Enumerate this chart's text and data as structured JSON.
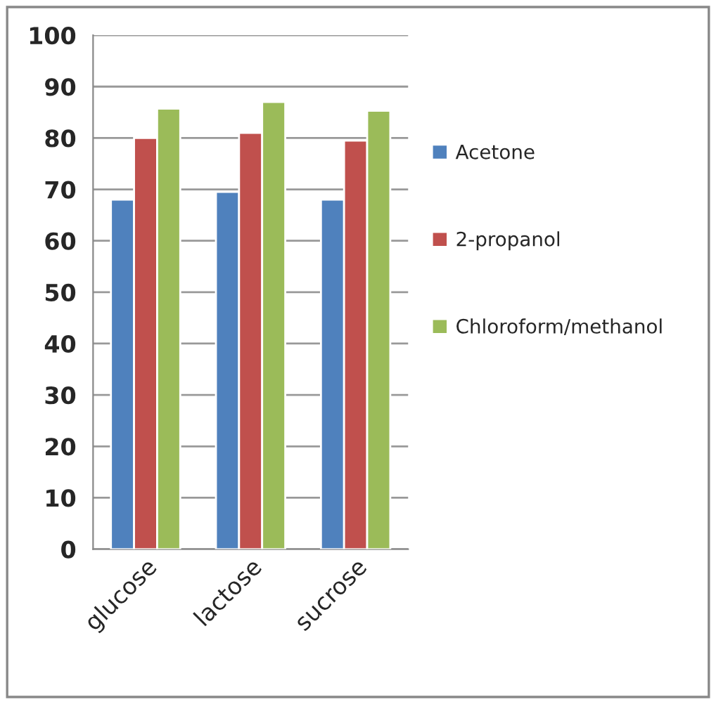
{
  "chart_data": {
    "type": "bar",
    "categories": [
      "glucose",
      "lactose",
      "sucrose"
    ],
    "series": [
      {
        "name": "Acetone",
        "color": "#4f81bd",
        "values": [
          68,
          69.5,
          68
        ]
      },
      {
        "name": "2-propanol",
        "color": "#c0504d",
        "values": [
          80,
          81,
          79.5
        ]
      },
      {
        "name": "Chloroform/methanol",
        "color": "#9bbb59",
        "values": [
          85.7,
          87,
          85.3
        ]
      }
    ],
    "ylim": [
      0,
      100
    ],
    "yticks": [
      0,
      10,
      20,
      30,
      40,
      50,
      60,
      70,
      80,
      90,
      100
    ],
    "grid": "y",
    "legend": "right"
  }
}
